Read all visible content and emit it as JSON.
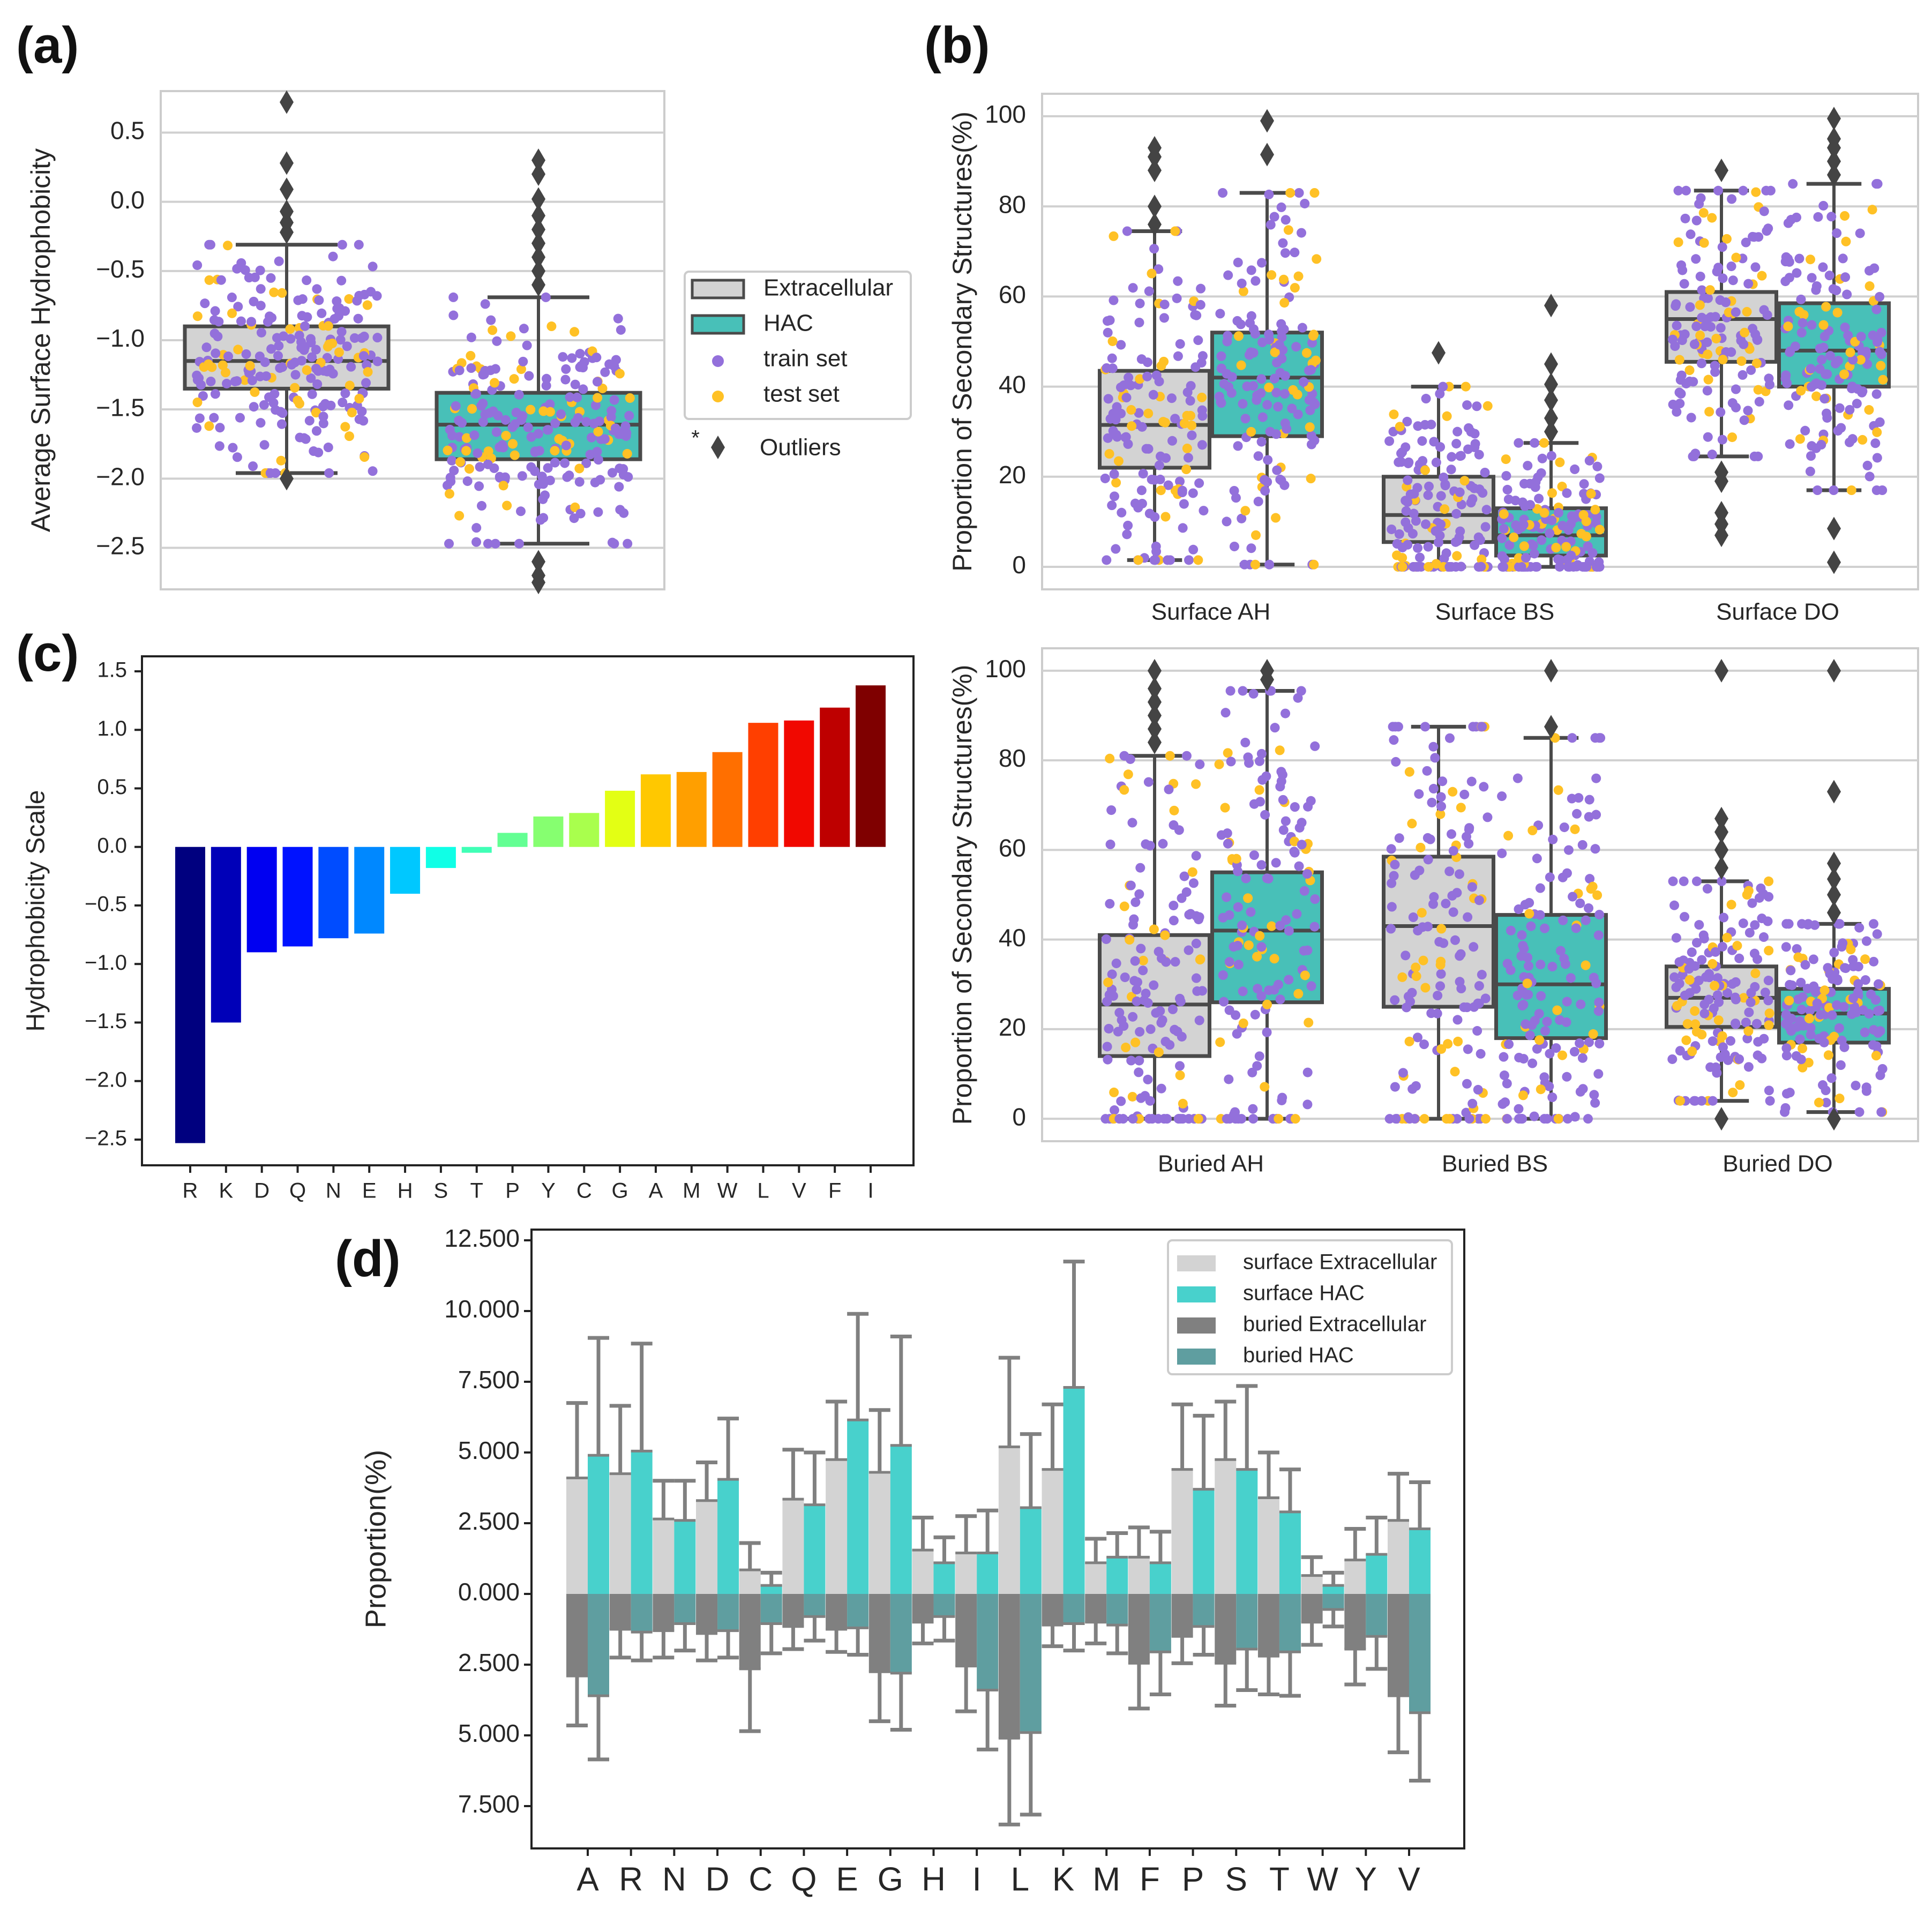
{
  "figure": {
    "panel_labels": [
      "(a)",
      "(b)",
      "(c)",
      "(d)"
    ]
  },
  "colors": {
    "extracellular_box": "#d3d3d3",
    "hac_box": "#48c0b8",
    "box_edge": "#4a4a4a",
    "train_dot": "#9370db",
    "test_dot": "#ffc125",
    "outlier": "#444444",
    "grid": "#d0d0d0",
    "surface_extracellular": "#d3d3d3",
    "surface_hac": "#48d1cc",
    "buried_extracellular": "#808080",
    "buried_hac": "#5f9ea0",
    "error_bar": "#808080"
  },
  "chart_data": [
    {
      "id": "a",
      "type": "box",
      "title": "",
      "xlabel": "",
      "ylabel": "Average Surface Hydrophobicity",
      "ylim": [
        -2.8,
        0.8
      ],
      "yticks": [
        0.5,
        0.0,
        -0.5,
        -1.0,
        -1.5,
        -2.0,
        -2.5
      ],
      "ytick_labels": [
        "0.5",
        "0.0",
        "−0.5",
        "−1.0",
        "−1.5",
        "−2.0",
        "−2.5"
      ],
      "grid": true,
      "groups": [
        {
          "name": "Extracellular",
          "q1": -1.35,
          "median": -1.15,
          "q3": -0.9,
          "whisker_low": -1.96,
          "whisker_high": -0.31,
          "outliers": [
            0.72,
            0.28,
            0.09,
            -0.07,
            -0.15,
            -0.22,
            -2.0
          ]
        },
        {
          "name": "HAC",
          "q1": -1.86,
          "median": -1.61,
          "q3": -1.38,
          "whisker_low": -2.47,
          "whisker_high": -0.69,
          "outliers": [
            0.3,
            0.2,
            0.02,
            -0.1,
            -0.2,
            -0.3,
            -0.4,
            -0.5,
            -0.6,
            -2.6,
            -2.7,
            -2.75
          ]
        }
      ],
      "legend": {
        "position": "right",
        "entries": [
          {
            "label": "Extracellular",
            "kind": "box",
            "color": "#d3d3d3"
          },
          {
            "label": "HAC",
            "kind": "box",
            "color": "#48c0b8"
          },
          {
            "label": "train set",
            "kind": "dot",
            "color": "#9370db"
          },
          {
            "label": "test set",
            "kind": "dot",
            "color": "#ffc125"
          }
        ],
        "footnote_marker": "*",
        "footnote_label": "Outliers"
      }
    },
    {
      "id": "b-top",
      "type": "box",
      "ylabel": "Proportion of Secondary Structures(%)",
      "ylim": [
        -5,
        105
      ],
      "yticks": [
        0,
        20,
        40,
        60,
        80,
        100
      ],
      "ytick_labels": [
        "0",
        "20",
        "40",
        "60",
        "80",
        "100"
      ],
      "grid": true,
      "categories": [
        "Surface AH",
        "Surface BS",
        "Surface DO"
      ],
      "groups": [
        {
          "category": "Surface AH",
          "hue": "Extracellular",
          "q1": 22,
          "median": 31.5,
          "q3": 43.5,
          "whisker_low": 1.5,
          "whisker_high": 74.5,
          "outliers": [
            76,
            80,
            88,
            91,
            93
          ]
        },
        {
          "category": "Surface AH",
          "hue": "HAC",
          "q1": 29,
          "median": 42,
          "q3": 52,
          "whisker_low": 0.5,
          "whisker_high": 83,
          "outliers": [
            91.5,
            99
          ]
        },
        {
          "category": "Surface BS",
          "hue": "Extracellular",
          "q1": 5.5,
          "median": 11.5,
          "q3": 20,
          "whisker_low": 0,
          "whisker_high": 40,
          "outliers": [
            47.5
          ]
        },
        {
          "category": "Surface BS",
          "hue": "HAC",
          "q1": 2.5,
          "median": 7,
          "q3": 13,
          "whisker_low": 0,
          "whisker_high": 27.5,
          "outliers": [
            30,
            33,
            37,
            40.5,
            45,
            58
          ]
        },
        {
          "category": "Surface DO",
          "hue": "Extracellular",
          "q1": 45.5,
          "median": 55,
          "q3": 61,
          "whisker_low": 24.5,
          "whisker_high": 83.5,
          "outliers": [
            21,
            19,
            12,
            9.5,
            7,
            88
          ]
        },
        {
          "category": "Surface DO",
          "hue": "HAC",
          "q1": 40,
          "median": 48,
          "q3": 58.5,
          "whisker_low": 17,
          "whisker_high": 85,
          "outliers": [
            8.5,
            1,
            87,
            90,
            93,
            95,
            99.5
          ]
        }
      ]
    },
    {
      "id": "b-bottom",
      "type": "box",
      "ylabel": "Proportion of Secondary Structures(%)",
      "ylim": [
        -5,
        105
      ],
      "yticks": [
        0,
        20,
        40,
        60,
        80,
        100
      ],
      "ytick_labels": [
        "0",
        "20",
        "40",
        "60",
        "80",
        "100"
      ],
      "grid": true,
      "categories": [
        "Buried AH",
        "Buried BS",
        "Buried DO"
      ],
      "groups": [
        {
          "category": "Buried AH",
          "hue": "Extracellular",
          "q1": 14,
          "median": 25.5,
          "q3": 41,
          "whisker_low": 0,
          "whisker_high": 81,
          "outliers": [
            84,
            87,
            90,
            93,
            96,
            100
          ]
        },
        {
          "category": "Buried AH",
          "hue": "HAC",
          "q1": 26,
          "median": 42,
          "q3": 55,
          "whisker_low": 0,
          "whisker_high": 95.5,
          "outliers": [
            98,
            100
          ]
        },
        {
          "category": "Buried BS",
          "hue": "Extracellular",
          "q1": 25,
          "median": 43,
          "q3": 58.5,
          "whisker_low": 0,
          "whisker_high": 87.5,
          "outliers": []
        },
        {
          "category": "Buried BS",
          "hue": "HAC",
          "q1": 18,
          "median": 30,
          "q3": 45.5,
          "whisker_low": 0,
          "whisker_high": 85,
          "outliers": [
            87.5,
            100
          ]
        },
        {
          "category": "Buried DO",
          "hue": "Extracellular",
          "q1": 20.5,
          "median": 27,
          "q3": 34,
          "whisker_low": 4,
          "whisker_high": 53,
          "outliers": [
            0,
            56,
            60,
            64,
            67,
            100
          ]
        },
        {
          "category": "Buried DO",
          "hue": "HAC",
          "q1": 17,
          "median": 23.5,
          "q3": 29,
          "whisker_low": 1.5,
          "whisker_high": 43.5,
          "outliers": [
            0,
            46,
            50,
            53.5,
            57,
            73,
            100
          ]
        }
      ]
    },
    {
      "id": "c",
      "type": "bar",
      "ylabel": "Hydrophobicity Scale",
      "xlabel": "",
      "ylim": [
        -2.75,
        1.5
      ],
      "yticks": [
        1.5,
        1.0,
        0.5,
        0.0,
        -0.5,
        -1.0,
        -1.5,
        -2.0,
        -2.5
      ],
      "ytick_labels": [
        "1.5",
        "1.0",
        "0.5",
        "0.0",
        "−0.5",
        "−1.0",
        "−1.5",
        "−2.0",
        "−2.5"
      ],
      "grid": false,
      "categories": [
        "R",
        "K",
        "D",
        "Q",
        "N",
        "E",
        "H",
        "S",
        "T",
        "P",
        "Y",
        "C",
        "G",
        "A",
        "M",
        "W",
        "L",
        "V",
        "F",
        "I"
      ],
      "values": [
        -2.53,
        -1.5,
        -0.9,
        -0.85,
        -0.78,
        -0.74,
        -0.4,
        -0.18,
        -0.05,
        0.12,
        0.26,
        0.29,
        0.48,
        0.62,
        0.64,
        0.81,
        1.06,
        1.08,
        1.19,
        1.38
      ],
      "bar_colors": [
        "#00007f",
        "#0000b8",
        "#0000f1",
        "#0012ff",
        "#004cff",
        "#0088ff",
        "#00c8ff",
        "#10ffe6",
        "#40ffb6",
        "#63ff93",
        "#86ff70",
        "#a9ff4d",
        "#e3ff14",
        "#ffc800",
        "#ff9f00",
        "#ff6f00",
        "#ff3f00",
        "#f10800",
        "#be0000",
        "#7f0000"
      ]
    },
    {
      "id": "d",
      "type": "bar",
      "ylabel": "Proportion(%)",
      "xlabel": "",
      "ylim": [
        -9.75,
        12.5
      ],
      "yticks": [
        12.5,
        10.0,
        7.5,
        5.0,
        2.5,
        0.0,
        -2.5,
        -5.0,
        -7.5
      ],
      "ytick_labels": [
        "12.500",
        "10.000",
        "7.500",
        "5.000",
        "2.500",
        "0.000",
        "2.500",
        "5.000",
        "7.500"
      ],
      "grid": false,
      "note": "buried series drawn downward from zero; tick labels show absolute values",
      "categories": [
        "A",
        "R",
        "N",
        "D",
        "C",
        "Q",
        "E",
        "G",
        "H",
        "I",
        "L",
        "K",
        "M",
        "F",
        "P",
        "S",
        "T",
        "W",
        "Y",
        "V"
      ],
      "series": [
        {
          "name": "surface Extracellular",
          "color": "#d3d3d3",
          "values": [
            4.1,
            4.25,
            2.65,
            3.3,
            0.85,
            3.35,
            4.75,
            4.3,
            1.55,
            1.45,
            5.2,
            4.4,
            1.1,
            1.3,
            4.4,
            4.75,
            3.4,
            0.65,
            1.2,
            2.6
          ],
          "errors": [
            2.65,
            2.4,
            1.35,
            1.35,
            0.95,
            1.75,
            2.05,
            2.2,
            1.15,
            1.3,
            3.15,
            2.3,
            0.85,
            1.05,
            2.3,
            2.05,
            1.6,
            0.65,
            1.1,
            1.65
          ]
        },
        {
          "name": "surface HAC",
          "color": "#48d1cc",
          "values": [
            4.9,
            5.05,
            2.6,
            4.05,
            0.3,
            3.15,
            6.15,
            5.25,
            1.1,
            1.45,
            3.05,
            7.3,
            1.3,
            1.1,
            3.7,
            4.4,
            2.9,
            0.3,
            1.4,
            2.3
          ],
          "errors": [
            4.15,
            3.8,
            1.4,
            2.15,
            0.45,
            1.85,
            3.75,
            3.85,
            0.9,
            1.5,
            2.6,
            4.45,
            0.85,
            1.1,
            2.6,
            2.95,
            1.5,
            0.45,
            1.3,
            1.65
          ]
        },
        {
          "name": "buried Extracellular",
          "color": "#808080",
          "values": [
            -2.9,
            -1.25,
            -1.3,
            -1.4,
            -2.65,
            -1.15,
            -1.25,
            -2.75,
            -1.0,
            -2.55,
            -5.1,
            -1.1,
            -1.0,
            -2.45,
            -1.5,
            -2.45,
            -2.2,
            -1.0,
            -1.95,
            -3.6
          ],
          "errors": [
            1.75,
            1.0,
            0.95,
            0.95,
            2.2,
            0.8,
            0.8,
            1.75,
            0.75,
            1.6,
            3.05,
            0.75,
            0.75,
            1.6,
            0.95,
            1.5,
            1.35,
            0.8,
            1.25,
            2.0
          ]
        },
        {
          "name": "buried HAC",
          "color": "#5f9ea0",
          "values": [
            -3.6,
            -1.35,
            -1.05,
            -1.3,
            -1.05,
            -0.8,
            -1.2,
            -2.8,
            -0.8,
            -3.4,
            -4.9,
            -1.05,
            -1.1,
            -2.05,
            -1.15,
            -1.95,
            -2.05,
            -0.55,
            -1.5,
            -4.2
          ],
          "errors": [
            2.25,
            1.0,
            0.95,
            0.95,
            1.05,
            0.85,
            0.95,
            2.0,
            0.85,
            2.1,
            2.9,
            0.95,
            1.0,
            1.5,
            1.0,
            1.45,
            1.55,
            0.6,
            1.15,
            2.4
          ]
        }
      ],
      "legend": {
        "position": "top-right",
        "entries": [
          "surface Extracellular",
          "surface HAC",
          "buried Extracellular",
          "buried HAC"
        ]
      }
    }
  ]
}
